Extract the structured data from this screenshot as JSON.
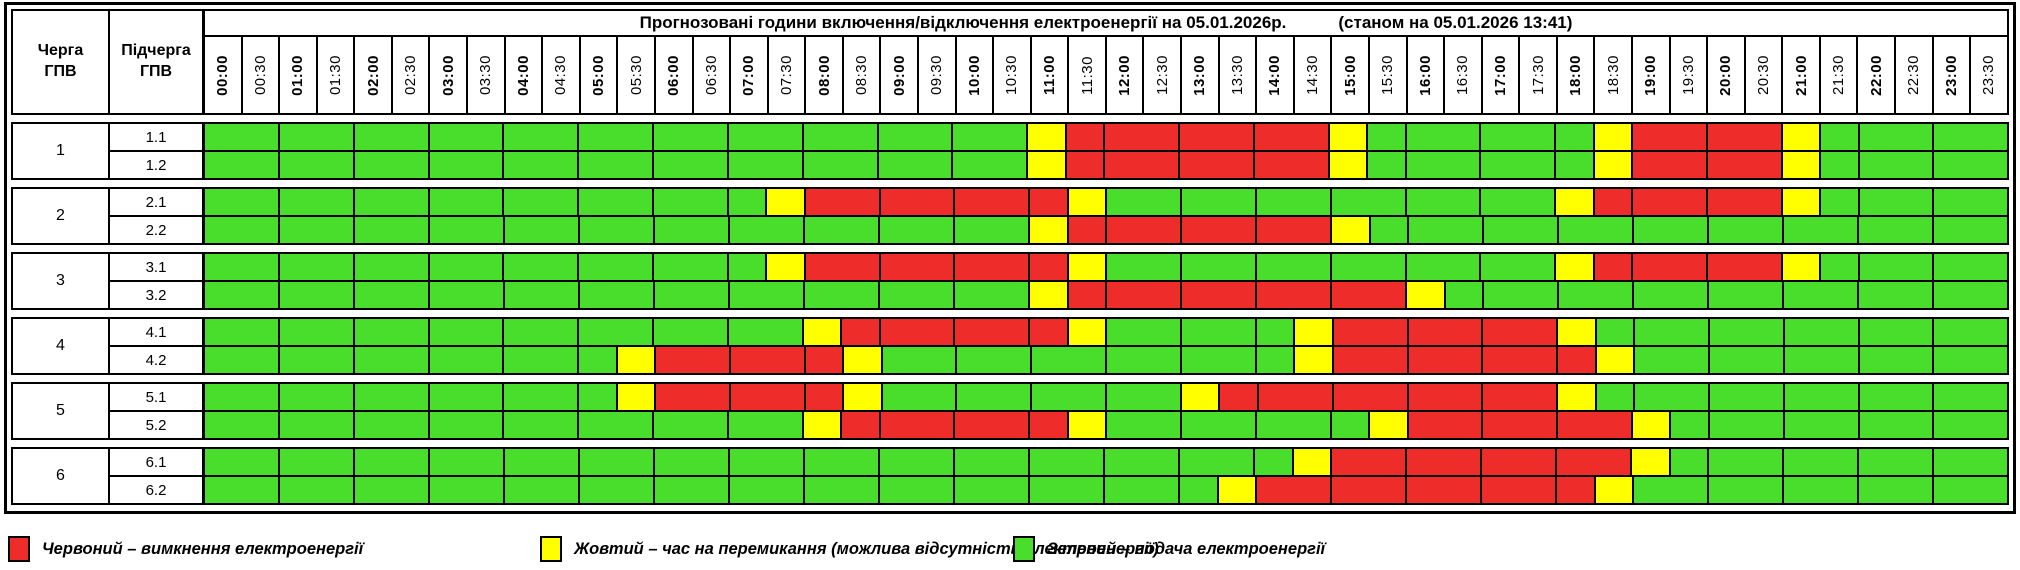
{
  "header": {
    "queue_col": [
      "Черга",
      "ГПВ"
    ],
    "subqueue_col": [
      "Підчерга",
      "ГПВ"
    ],
    "title_main": "Прогнозовані години включення/відключення електроенергії на 05.01.2026р.",
    "title_asof": "(станом на 05.01.2026 13:41)"
  },
  "colors": {
    "green": "#4ADE2C",
    "red": "#EE2D2B",
    "yellow": "#FFFF00",
    "border": "#000000"
  },
  "legend": [
    {
      "state": "R",
      "label": "Червоний – вимкнення електроенергії"
    },
    {
      "state": "Y",
      "label": "Жовтий – час на перемикання (можлива відсутність електроенергії)"
    },
    {
      "state": "G",
      "label": "Зелений – подача електроенергії"
    }
  ],
  "chart_data": {
    "type": "heatmap",
    "title": "Прогнозовані години включення/відключення електроенергії на 05.01.2026р.",
    "as_of": "05.01.2026 13:41",
    "slot_minutes": 30,
    "x_labels": [
      "00:00",
      "00:30",
      "01:00",
      "01:30",
      "02:00",
      "02:30",
      "03:00",
      "03:30",
      "04:00",
      "04:30",
      "05:00",
      "05:30",
      "06:00",
      "06:30",
      "07:00",
      "07:30",
      "08:00",
      "08:30",
      "09:00",
      "09:30",
      "10:00",
      "10:30",
      "11:00",
      "11:30",
      "12:00",
      "12:30",
      "13:00",
      "13:30",
      "14:00",
      "14:30",
      "15:00",
      "15:30",
      "16:00",
      "16:30",
      "17:00",
      "17:30",
      "18:00",
      "18:30",
      "19:00",
      "19:30",
      "20:00",
      "20:30",
      "21:00",
      "21:30",
      "22:00",
      "22:30",
      "23:00",
      "23:30"
    ],
    "cell_states": {
      "G": "подача електроенергії",
      "Y": "час на перемикання",
      "R": "вимкнення електроенергії"
    },
    "rows": [
      {
        "queue": "1",
        "subqueue": "1.1",
        "pattern": "GGGGGGGGGGGGGGGGGGGGGGYRRRRRRRYGGGGGGYRRRRYGGGGG"
      },
      {
        "queue": "1",
        "subqueue": "1.2",
        "pattern": "GGGGGGGGGGGGGGGGGGGGGGYRRRRRRRYGGGGGGYRRRRYGGGGG"
      },
      {
        "queue": "2",
        "subqueue": "2.1",
        "pattern": "GGGGGGGGGGGGGGGYRRRRRRRYGGGGGGGGGGGGYRRRRRYGGGGG"
      },
      {
        "queue": "2",
        "subqueue": "2.2",
        "pattern": "GGGGGGGGGGGGGGGGGGGGGGYRRRRRRRYGGGGGGGGGGGGGGGGG"
      },
      {
        "queue": "3",
        "subqueue": "3.1",
        "pattern": "GGGGGGGGGGGGGGGYRRRRRRRYGGGGGGGGGGGGYRRRRRYGGGGG"
      },
      {
        "queue": "3",
        "subqueue": "3.2",
        "pattern": "GGGGGGGGGGGGGGGGGGGGGGYRRRRRRRRRYGGGGGGGGGGGGGGG"
      },
      {
        "queue": "4",
        "subqueue": "4.1",
        "pattern": "GGGGGGGGGGGGGGGGYRRRRRRYGGGGGYRRRRRRYGGGGGGGGGGG"
      },
      {
        "queue": "4",
        "subqueue": "4.2",
        "pattern": "GGGGGGGGGGGYRRRRRYGGGGGGGGGGGYRRRRRRRYGGGGGGGGGG"
      },
      {
        "queue": "5",
        "subqueue": "5.1",
        "pattern": "GGGGGGGGGGGYRRRRRYGGGGGGGGYRRRRRRRRRYGGGGGGGGGGG"
      },
      {
        "queue": "5",
        "subqueue": "5.2",
        "pattern": "GGGGGGGGGGGGGGGGYRRRRRRYGGGGGGGYRRRRRRYGGGGGGGGG"
      },
      {
        "queue": "6",
        "subqueue": "6.1",
        "pattern": "GGGGGGGGGGGGGGGGGGGGGGGGGGGGGYRRRRRRRRYGGGGGGGGG"
      },
      {
        "queue": "6",
        "subqueue": "6.2",
        "pattern": "GGGGGGGGGGGGGGGGGGGGGGGGGGGYRRRRRRRRRYGGGGGGGGGG"
      }
    ]
  }
}
